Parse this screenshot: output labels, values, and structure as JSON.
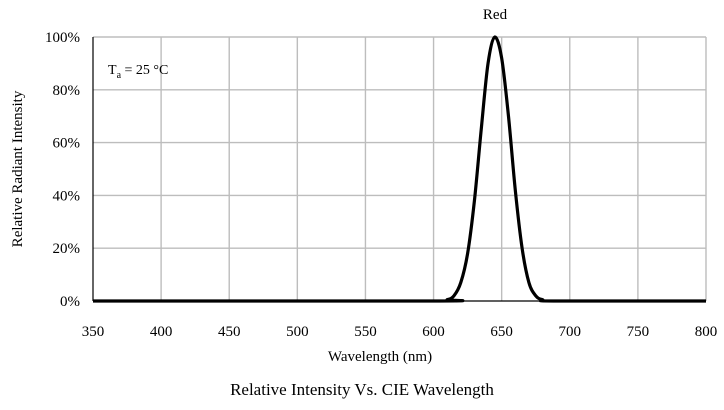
{
  "chart_data": {
    "type": "line",
    "series_label": "Red",
    "xlabel": "Wavelength (nm)",
    "ylabel": "Relative  Radiant Intensity",
    "caption": "Relative Intensity Vs. CIE Wavelength",
    "annotation": {
      "base": "T",
      "sub": "a",
      "rest": " = 25 °C"
    },
    "xlim": [
      350,
      800
    ],
    "ylim": [
      0,
      100
    ],
    "x_ticks": [
      350,
      400,
      450,
      500,
      550,
      600,
      650,
      700,
      750,
      800
    ],
    "y_ticks": [
      0,
      20,
      40,
      60,
      80,
      100
    ],
    "y_tick_labels": [
      "0%",
      "20%",
      "40%",
      "60%",
      "80%",
      "100%"
    ],
    "grid": true,
    "series": [
      {
        "x": [
          350,
          600,
          610,
          615,
          620,
          625,
          630,
          635,
          640,
          645,
          650,
          655,
          660,
          665,
          670,
          675,
          680,
          690,
          800
        ],
        "y": [
          0,
          0,
          0.5,
          2,
          7,
          18,
          38,
          65,
          90,
          100,
          92,
          70,
          42,
          20,
          7,
          2,
          0.5,
          0,
          0
        ]
      }
    ]
  }
}
